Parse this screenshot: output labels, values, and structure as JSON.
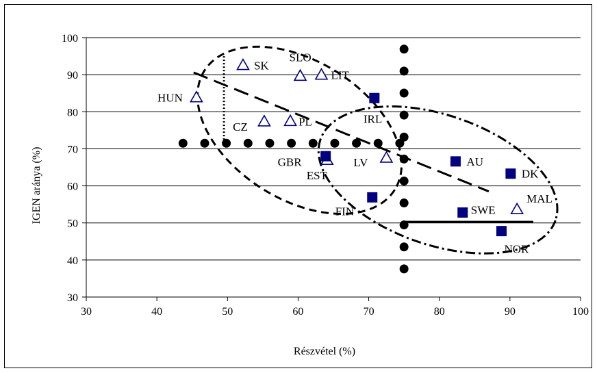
{
  "chart_data": {
    "type": "scatter",
    "title": "",
    "xlabel": "Részvétel (%)",
    "ylabel": "IGEN aránya (%)",
    "xlim": [
      30,
      100
    ],
    "ylim": [
      30,
      100
    ],
    "xticks": [
      30,
      40,
      50,
      60,
      70,
      80,
      90,
      100
    ],
    "yticks": [
      30,
      40,
      50,
      60,
      70,
      80,
      90,
      100
    ],
    "grid": "horizontal",
    "legend": "none",
    "colors": {
      "square": "#000080",
      "triangle": "#000080",
      "dots": "#000000"
    },
    "series": [
      {
        "marker": "triangle",
        "points": [
          {
            "label": "HUN",
            "x": 45.6,
            "y": 83.8
          },
          {
            "label": "SK",
            "x": 52.2,
            "y": 92.5
          },
          {
            "label": "SLO",
            "x": 60.3,
            "y": 89.6
          },
          {
            "label": "LIT",
            "x": 63.3,
            "y": 89.9
          },
          {
            "label": "CZ",
            "x": 55.2,
            "y": 77.3
          },
          {
            "label": "PL",
            "x": 58.9,
            "y": 77.4
          },
          {
            "label": "EST",
            "x": 64.1,
            "y": 66.9
          },
          {
            "label": "LV",
            "x": 72.5,
            "y": 67.5
          },
          {
            "label": "MAL",
            "x": 91.0,
            "y": 53.6
          }
        ]
      },
      {
        "marker": "square",
        "points": [
          {
            "label": "IRL",
            "x": 70.8,
            "y": 83.7
          },
          {
            "label": "GBR",
            "x": 63.9,
            "y": 68.0
          },
          {
            "label": "AU",
            "x": 82.3,
            "y": 66.6
          },
          {
            "label": "DK",
            "x": 90.1,
            "y": 63.3
          },
          {
            "label": "FIN",
            "x": 70.5,
            "y": 56.9
          },
          {
            "label": "SWE",
            "x": 83.3,
            "y": 52.8
          },
          {
            "label": "NOR",
            "x": 88.8,
            "y": 47.8
          }
        ]
      }
    ],
    "reference_lines": {
      "horizontal_dotted_y": 71.5,
      "horizontal_dotted_x_range": [
        43.7,
        74.5
      ],
      "vertical_dotted_x": 75.0,
      "vertical_dotted_y_range": [
        31.7,
        96.9
      ],
      "vertical_short_dotted_x": 49.5,
      "vertical_short_dotted_y_range": [
        71.6,
        95.0
      ],
      "solid_segment_y": 50.3,
      "solid_segment_x_range": [
        75.0,
        93.3
      ],
      "dashed_trend": [
        [
          45.2,
          90.6
        ],
        [
          87.0,
          58.5
        ]
      ]
    },
    "ellipses": [
      {
        "style": "dashed",
        "center": [
          60.2,
          75.0
        ],
        "rx": 15.9,
        "ry": 18.7,
        "angle": 32
      },
      {
        "style": "dash-dot",
        "center": [
          79.8,
          61.6
        ],
        "rx": 17.6,
        "ry": 17.5,
        "angle": 19
      }
    ]
  }
}
